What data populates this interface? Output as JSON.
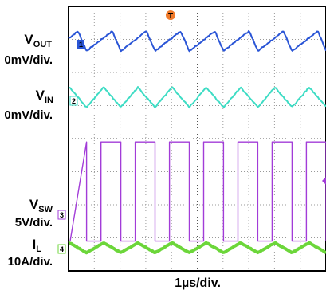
{
  "chart_data": {
    "type": "line",
    "title": "",
    "xlabel": "1µs/div.",
    "x_divisions": 10,
    "y_divisions": 8,
    "grid": true,
    "trigger_marker": "T",
    "series": [
      {
        "name": "VOUT",
        "channel": "1",
        "scale": "0mV/div.",
        "color": "#2A55D6",
        "waveform": "sawtooth",
        "period_div": 1.33,
        "level_div": 6.95,
        "amplitude_div": 0.3
      },
      {
        "name": "VIN",
        "channel": "2",
        "scale": "0mV/div.",
        "color": "#3DDCC4",
        "waveform": "triangle",
        "period_div": 1.33,
        "level_div": 5.25,
        "amplitude_div": 0.3
      },
      {
        "name": "VSW",
        "channel": "3",
        "scale": "5V/div.",
        "color": "#A23CD8",
        "waveform": "square",
        "period_div": 1.33,
        "duty": 0.58,
        "high_div": 3.9,
        "low_div": 0.9
      },
      {
        "name": "IL",
        "channel": "4",
        "scale": "10A/div.",
        "color": "#6CD63A",
        "waveform": "triangle",
        "period_div": 1.33,
        "level_div": 0.7,
        "amplitude_div": 0.15
      }
    ],
    "labels": {
      "vout_main": "V",
      "vout_sub": "OUT",
      "vout_scale": "0mV/div.",
      "vin_main": "V",
      "vin_sub": "IN",
      "vin_scale": "0mV/div.",
      "vsw_main": "V",
      "vsw_sub": "SW",
      "vsw_scale": "5V/div.",
      "il_main": "I",
      "il_sub": "L",
      "il_scale": "10A/div."
    }
  }
}
